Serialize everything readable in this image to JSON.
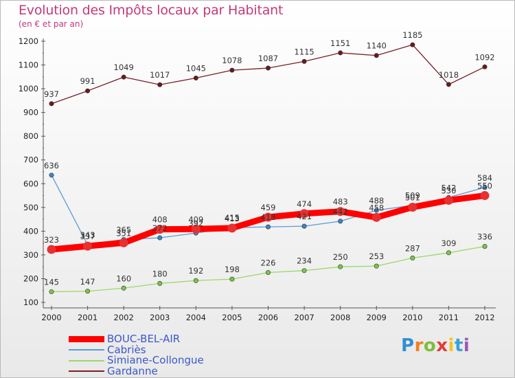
{
  "title": "Evolution des Impôts locaux par Habitant",
  "subtitle": "(en € et par an)",
  "logo": {
    "letters": [
      "P",
      "r",
      "o",
      "x",
      "i",
      "t",
      "i"
    ],
    "colors": [
      "#2f8fd1",
      "#f07f1e",
      "#7cbf3a",
      "#e23b3b",
      "#f3c425",
      "#3aa0d8",
      "#9b59b6"
    ]
  },
  "chart_data": {
    "type": "line",
    "title": "Evolution des Impôts locaux par Habitant",
    "subtitle": "(en € et par an)",
    "x": [
      "2000",
      "2001",
      "2002",
      "2003",
      "2004",
      "2005",
      "2006",
      "2007",
      "2008",
      "2009",
      "2010",
      "2011",
      "2012"
    ],
    "ylim": [
      100,
      1200
    ],
    "yticks": [
      100,
      200,
      300,
      400,
      500,
      600,
      700,
      800,
      900,
      1000,
      1100,
      1200
    ],
    "grid": false,
    "legend_position": "bottom-left",
    "series": [
      {
        "name": "BOUC-BEL-AIR",
        "color": "#ff0000",
        "marker": "#e83030",
        "values": [
          323,
          337,
          351,
          408,
          409,
          413,
          459,
          474,
          483,
          458,
          501,
          530,
          550
        ]
      },
      {
        "name": "Cabriès",
        "color": "#5a9ad6",
        "marker": "#3c84c9",
        "values": [
          636,
          343,
          365,
          372,
          392,
          415,
          418,
          421,
          442,
          488,
          509,
          542,
          584
        ]
      },
      {
        "name": "Simiane-Collongue",
        "color": "#9ad86a",
        "marker": "#7cc544",
        "values": [
          145,
          147,
          160,
          180,
          192,
          198,
          226,
          234,
          250,
          253,
          287,
          309,
          336
        ]
      },
      {
        "name": "Gardanne",
        "color": "#7a1e24",
        "marker": "#6a1a1a",
        "values": [
          937,
          991,
          1049,
          1017,
          1045,
          1078,
          1087,
          1115,
          1151,
          1140,
          1185,
          1018,
          1092
        ]
      }
    ]
  }
}
